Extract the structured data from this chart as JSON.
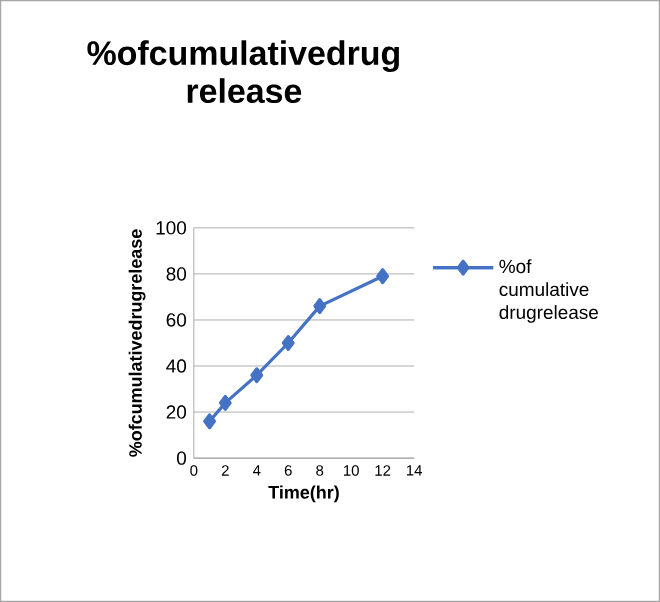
{
  "chart_data": {
    "type": "line",
    "title": "%ofcumulativedrug release",
    "xlabel": "Time(hr)",
    "ylabel": "%ofcumulativedrugrelease",
    "x": [
      1,
      2,
      4,
      6,
      8,
      12
    ],
    "series": [
      {
        "name": "%of cumulative drugrelease",
        "color": "#4472c4",
        "values": [
          16,
          24,
          36,
          50,
          66,
          79
        ]
      }
    ],
    "xlim": [
      0,
      14
    ],
    "xticks": [
      0,
      2,
      4,
      6,
      8,
      10,
      12,
      14
    ],
    "ylim": [
      0,
      100
    ],
    "yticks": [
      0,
      20,
      40,
      60,
      80,
      100
    ],
    "grid": "y",
    "legend": "right",
    "marker": "diamond",
    "line_style": "solid"
  }
}
